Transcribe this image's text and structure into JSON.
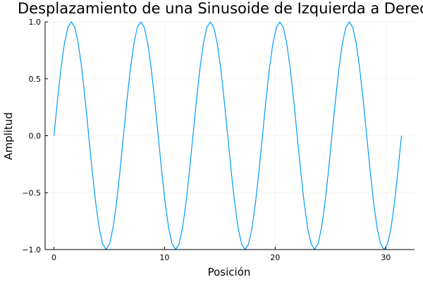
{
  "chart_data": {
    "type": "line",
    "title": "Desplazamiento de una Sinusoide de Izquierda a Derecha",
    "xlabel": "Posición",
    "ylabel": "Amplitud",
    "xlim": [
      -0.8,
      32.6
    ],
    "ylim": [
      -1.0,
      1.0
    ],
    "x_ticks": [
      0,
      10,
      20,
      30
    ],
    "x_tick_labels": [
      "0",
      "10",
      "20",
      "30"
    ],
    "y_ticks": [
      -1.0,
      -0.5,
      0.0,
      0.5,
      1.0
    ],
    "y_tick_labels": [
      "−1.0",
      "−0.5",
      "0.0",
      "0.5",
      "1.0"
    ],
    "grid": true,
    "legend": "none",
    "series": [
      {
        "color": "#009AFA",
        "x": [
          0,
          0.3142,
          0.6283,
          0.9425,
          1.2566,
          1.5708,
          1.885,
          2.1991,
          2.5133,
          2.8274,
          3.1416,
          3.4558,
          3.7699,
          4.0841,
          4.3982,
          4.7124,
          5.0265,
          5.3407,
          5.6549,
          5.969,
          6.2832,
          6.5973,
          6.9115,
          7.2257,
          7.5398,
          7.854,
          8.1681,
          8.4823,
          8.7965,
          9.1106,
          9.4248,
          9.7389,
          10.0531,
          10.3673,
          10.6814,
          10.9956,
          11.3097,
          11.6239,
          11.938,
          12.2522,
          12.5664,
          12.8805,
          13.1947,
          13.5088,
          13.823,
          14.1372,
          14.4513,
          14.7655,
          15.0796,
          15.3938,
          15.708,
          16.0221,
          16.3363,
          16.6504,
          16.9646,
          17.2788,
          17.5929,
          17.9071,
          18.2212,
          18.5354,
          18.8496,
          19.1637,
          19.4779,
          19.792,
          20.1062,
          20.4204,
          20.7345,
          21.0487,
          21.3628,
          21.677,
          21.9911,
          22.3053,
          22.6195,
          22.9336,
          23.2478,
          23.5619,
          23.8761,
          24.1903,
          24.5044,
          24.8186,
          25.1327,
          25.4469,
          25.7611,
          26.0752,
          26.3894,
          26.7035,
          27.0177,
          27.3319,
          27.646,
          27.9602,
          28.2743,
          28.5885,
          28.9027,
          29.2168,
          29.531,
          29.8451,
          30.1593,
          30.4734,
          30.7876,
          31.1018,
          31.4159
        ],
        "y": [
          0,
          0.309,
          0.5878,
          0.809,
          0.9511,
          1.0,
          0.9511,
          0.809,
          0.5878,
          0.309,
          0,
          -0.309,
          -0.5878,
          -0.809,
          -0.9511,
          -1.0,
          -0.9511,
          -0.809,
          -0.5878,
          -0.309,
          0,
          0.309,
          0.5878,
          0.809,
          0.9511,
          1.0,
          0.9511,
          0.809,
          0.5878,
          0.309,
          0,
          -0.309,
          -0.5878,
          -0.809,
          -0.9511,
          -1.0,
          -0.9511,
          -0.809,
          -0.5878,
          -0.309,
          0,
          0.309,
          0.5878,
          0.809,
          0.9511,
          1.0,
          0.9511,
          0.809,
          0.5878,
          0.309,
          0,
          -0.309,
          -0.5878,
          -0.809,
          -0.9511,
          -1.0,
          -0.9511,
          -0.809,
          -0.5878,
          -0.309,
          0,
          0.309,
          0.5878,
          0.809,
          0.9511,
          1.0,
          0.9511,
          0.809,
          0.5878,
          0.309,
          0,
          -0.309,
          -0.5878,
          -0.809,
          -0.9511,
          -1.0,
          -0.9511,
          -0.809,
          -0.5878,
          -0.309,
          0,
          0.309,
          0.5878,
          0.809,
          0.9511,
          1.0,
          0.9511,
          0.809,
          0.5878,
          0.309,
          0,
          -0.309,
          -0.5878,
          -0.809,
          -0.9511,
          -1.0,
          -0.9511,
          -0.809,
          -0.5878,
          -0.309,
          0
        ]
      }
    ]
  }
}
